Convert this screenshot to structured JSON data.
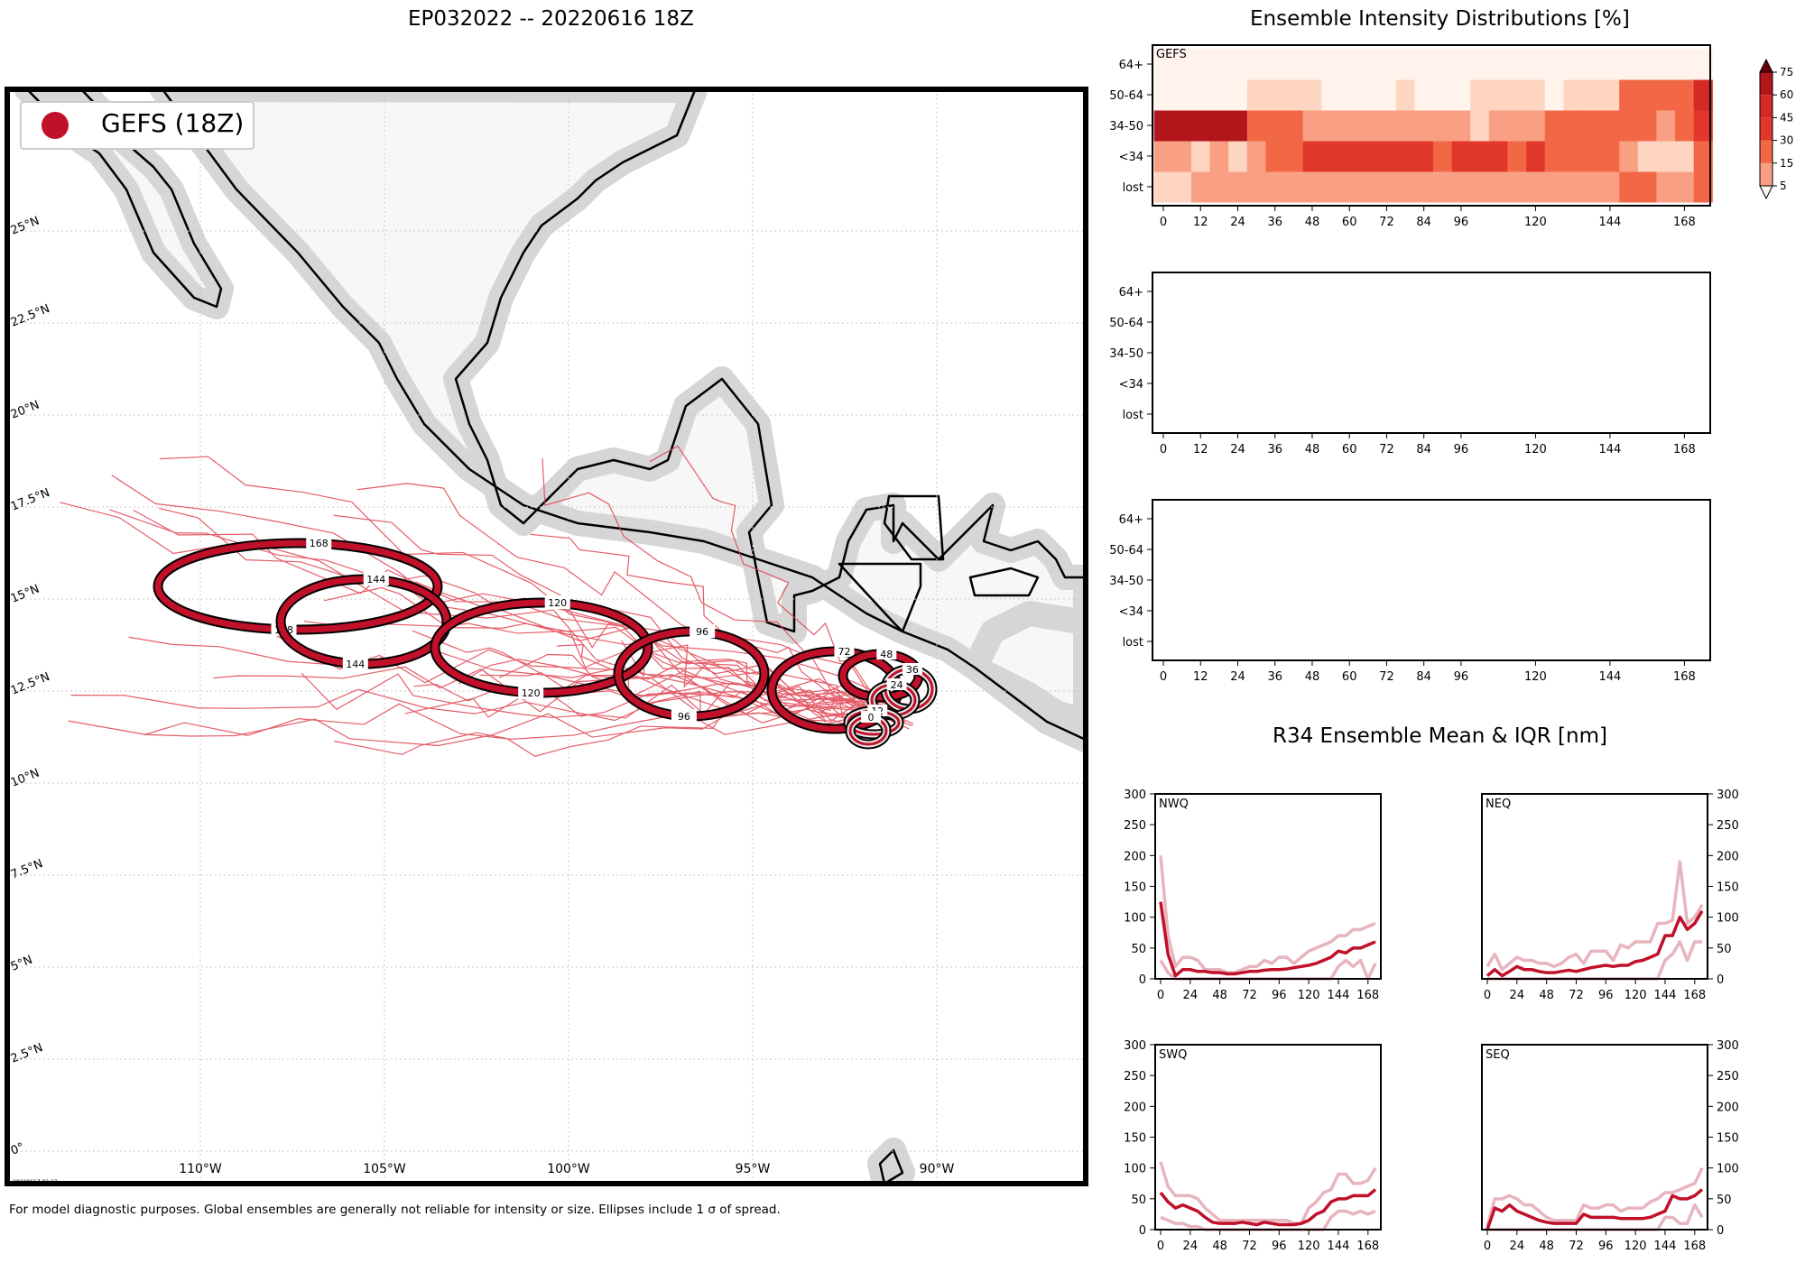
{
  "map": {
    "title": "EP032022 -- 20220616 18Z",
    "legend_label": "GEFS (18Z)",
    "footnote": "For model diagnostic purposes. Global ensembles are generally not reliable for intensity or size. Ellipses include 1 σ of spread.",
    "stamp": "20220617 02:13",
    "colors": {
      "track": "#e0414f",
      "ellipse": "#c0102a",
      "land": "#f7f7f7",
      "coast_halo": "#cfcfcf"
    },
    "lat_labels": [
      "0°",
      "2.5°N",
      "5°N",
      "7.5°N",
      "10°N",
      "12.5°N",
      "15°N",
      "17.5°N",
      "20°N",
      "22.5°N",
      "25°N"
    ],
    "lon_labels": [
      "110°W",
      "105°W",
      "100°W",
      "95°W",
      "90°W"
    ],
    "ellipse_labels": [
      "168",
      "144",
      "120",
      "96",
      "72",
      "48",
      "36",
      "24",
      "12",
      "0"
    ]
  },
  "chart_data": [
    {
      "type": "heatmap",
      "title": "Ensemble Intensity Distributions [%]",
      "panel_label": "GEFS",
      "x": [
        0,
        6,
        12,
        18,
        24,
        30,
        36,
        42,
        48,
        54,
        60,
        66,
        72,
        78,
        84,
        90,
        96,
        102,
        108,
        114,
        120,
        126,
        132,
        138,
        144,
        150,
        156,
        162,
        168,
        174
      ],
      "xticks": [
        0,
        12,
        24,
        36,
        48,
        60,
        72,
        84,
        96,
        120,
        144,
        168
      ],
      "rows": [
        "lost",
        "<34",
        "34-50",
        "50-64",
        "64+"
      ],
      "values": {
        "64+": [
          2,
          2,
          2,
          2,
          2,
          2,
          2,
          2,
          2,
          2,
          2,
          2,
          2,
          2,
          2,
          2,
          2,
          2,
          2,
          2,
          2,
          2,
          2,
          2,
          2,
          2,
          2,
          2,
          2,
          2
        ],
        "50-64": [
          2,
          2,
          2,
          2,
          2,
          10,
          10,
          10,
          10,
          2,
          2,
          2,
          2,
          10,
          2,
          2,
          2,
          10,
          10,
          10,
          10,
          2,
          10,
          10,
          10,
          30,
          30,
          30,
          30,
          60
        ],
        "34-50": [
          75,
          75,
          75,
          75,
          75,
          30,
          30,
          30,
          20,
          20,
          20,
          20,
          20,
          20,
          20,
          20,
          20,
          10,
          20,
          20,
          20,
          30,
          30,
          30,
          30,
          30,
          30,
          20,
          30,
          45
        ],
        "<34": [
          20,
          20,
          10,
          20,
          10,
          20,
          30,
          30,
          45,
          45,
          45,
          45,
          45,
          45,
          45,
          30,
          45,
          45,
          45,
          30,
          45,
          30,
          30,
          30,
          30,
          20,
          10,
          10,
          10,
          30
        ],
        "lost": [
          10,
          5,
          20,
          20,
          20,
          20,
          20,
          20,
          20,
          20,
          20,
          20,
          20,
          20,
          20,
          20,
          20,
          20,
          20,
          20,
          20,
          20,
          20,
          20,
          20,
          30,
          30,
          20,
          20,
          30
        ]
      },
      "colorbar": {
        "ticks": [
          5,
          15,
          30,
          45,
          60,
          75
        ]
      }
    },
    {
      "type": "heatmap",
      "rows": [
        "lost",
        "<34",
        "34-50",
        "50-64",
        "64+"
      ],
      "xticks": [
        0,
        12,
        24,
        36,
        48,
        60,
        72,
        84,
        96,
        120,
        144,
        168
      ],
      "values": {}
    },
    {
      "type": "heatmap",
      "rows": [
        "lost",
        "<34",
        "34-50",
        "50-64",
        "64+"
      ],
      "xticks": [
        0,
        12,
        24,
        36,
        48,
        60,
        72,
        84,
        96,
        120,
        144,
        168
      ],
      "values": {}
    },
    {
      "type": "line",
      "title": "R34 Ensemble Mean & IQR [nm]",
      "x": [
        0,
        6,
        12,
        18,
        24,
        30,
        36,
        42,
        48,
        54,
        60,
        66,
        72,
        78,
        84,
        90,
        96,
        102,
        108,
        114,
        120,
        126,
        132,
        138,
        144,
        150,
        156,
        162,
        168,
        174
      ],
      "xticks": [
        0,
        24,
        48,
        72,
        96,
        120,
        144,
        168
      ],
      "ylim": [
        0,
        300
      ],
      "yticks": [
        0,
        50,
        100,
        150,
        200,
        250,
        300
      ],
      "panels": [
        {
          "name": "NWQ",
          "mean": [
            125,
            40,
            5,
            15,
            15,
            12,
            12,
            10,
            10,
            8,
            8,
            10,
            12,
            12,
            14,
            15,
            15,
            16,
            18,
            20,
            22,
            25,
            30,
            35,
            45,
            42,
            50,
            50,
            55,
            60
          ],
          "upper": [
            200,
            70,
            20,
            35,
            35,
            30,
            15,
            15,
            15,
            10,
            10,
            15,
            20,
            20,
            30,
            25,
            35,
            35,
            25,
            35,
            45,
            50,
            55,
            60,
            70,
            70,
            80,
            80,
            85,
            90
          ],
          "lower": [
            30,
            10,
            0,
            0,
            0,
            0,
            0,
            0,
            0,
            0,
            0,
            0,
            0,
            0,
            0,
            0,
            0,
            0,
            0,
            0,
            0,
            0,
            0,
            0,
            20,
            30,
            20,
            30,
            0,
            25
          ]
        },
        {
          "name": "NEQ",
          "mean": [
            5,
            15,
            5,
            12,
            20,
            15,
            15,
            12,
            10,
            10,
            12,
            14,
            12,
            15,
            18,
            20,
            22,
            20,
            22,
            22,
            28,
            30,
            35,
            40,
            70,
            70,
            100,
            80,
            90,
            110
          ],
          "upper": [
            20,
            40,
            15,
            25,
            35,
            30,
            30,
            25,
            25,
            20,
            25,
            35,
            40,
            25,
            45,
            45,
            45,
            30,
            55,
            50,
            60,
            60,
            60,
            90,
            90,
            95,
            190,
            90,
            100,
            120
          ],
          "lower": [
            0,
            0,
            0,
            0,
            0,
            0,
            0,
            0,
            0,
            0,
            0,
            0,
            0,
            0,
            0,
            0,
            0,
            0,
            0,
            0,
            0,
            0,
            0,
            0,
            30,
            40,
            60,
            30,
            60,
            60
          ]
        },
        {
          "name": "SWQ",
          "mean": [
            60,
            45,
            35,
            40,
            35,
            30,
            20,
            12,
            10,
            10,
            10,
            12,
            10,
            8,
            12,
            10,
            8,
            8,
            8,
            10,
            15,
            25,
            30,
            45,
            50,
            50,
            55,
            55,
            55,
            65
          ],
          "upper": [
            110,
            70,
            55,
            55,
            55,
            50,
            35,
            25,
            15,
            15,
            15,
            15,
            15,
            15,
            15,
            15,
            15,
            15,
            10,
            10,
            35,
            45,
            60,
            65,
            90,
            90,
            75,
            75,
            80,
            100
          ],
          "lower": [
            20,
            15,
            10,
            10,
            5,
            5,
            0,
            0,
            0,
            0,
            0,
            0,
            0,
            0,
            0,
            0,
            0,
            0,
            0,
            0,
            0,
            0,
            0,
            20,
            30,
            30,
            25,
            30,
            25,
            30
          ]
        },
        {
          "name": "SEQ",
          "mean": [
            0,
            35,
            30,
            40,
            30,
            25,
            20,
            15,
            12,
            10,
            10,
            10,
            10,
            25,
            20,
            20,
            20,
            20,
            18,
            18,
            18,
            18,
            20,
            25,
            30,
            55,
            50,
            50,
            55,
            65
          ],
          "upper": [
            5,
            50,
            50,
            55,
            50,
            40,
            40,
            30,
            20,
            15,
            15,
            15,
            15,
            40,
            35,
            35,
            40,
            40,
            30,
            35,
            35,
            35,
            45,
            50,
            60,
            60,
            65,
            70,
            75,
            100
          ],
          "lower": [
            0,
            0,
            0,
            0,
            0,
            0,
            0,
            0,
            0,
            0,
            0,
            0,
            0,
            0,
            0,
            0,
            0,
            0,
            0,
            0,
            0,
            0,
            0,
            0,
            20,
            20,
            10,
            10,
            40,
            20
          ]
        }
      ]
    }
  ]
}
